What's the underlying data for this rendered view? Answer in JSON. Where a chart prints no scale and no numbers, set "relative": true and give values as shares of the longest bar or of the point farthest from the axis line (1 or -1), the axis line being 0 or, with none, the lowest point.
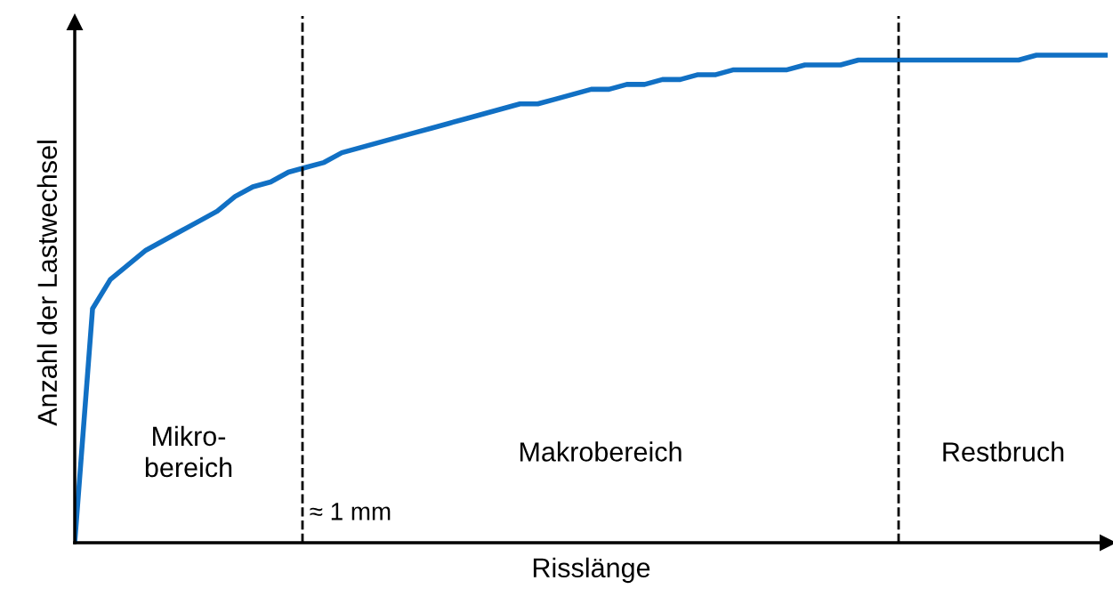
{
  "chart_data": {
    "type": "line",
    "relative": true,
    "xlabel": "Risslänge",
    "ylabel": "Anzahl der Lastwechsel",
    "categories": [
      null,
      null,
      null,
      null,
      null,
      null,
      null,
      null,
      null,
      null,
      null,
      null,
      null,
      null,
      null,
      null,
      null,
      null,
      null,
      null,
      null,
      null,
      null,
      null,
      null,
      null,
      null,
      null,
      null,
      null,
      null,
      null,
      null,
      null,
      null,
      null,
      null,
      null,
      null,
      null,
      null,
      null,
      null,
      null,
      null,
      null,
      null,
      null,
      null,
      null,
      null,
      null,
      null,
      null,
      null,
      null,
      null,
      null,
      null
    ],
    "series": [
      {
        "color": "#1170c4",
        "values": [
          0,
          0.48,
          0.54,
          0.57,
          0.6,
          0.62,
          0.64,
          0.66,
          0.68,
          0.71,
          0.73,
          0.74,
          0.76,
          0.77,
          0.78,
          0.8,
          0.81,
          0.82,
          0.83,
          0.84,
          0.85,
          0.86,
          0.87,
          0.88,
          0.89,
          0.9,
          0.9,
          0.91,
          0.92,
          0.93,
          0.93,
          0.94,
          0.94,
          0.95,
          0.95,
          0.96,
          0.96,
          0.97,
          0.97,
          0.97,
          0.97,
          0.98,
          0.98,
          0.98,
          0.99,
          0.99,
          0.99,
          0.99,
          0.99,
          0.99,
          0.99,
          0.99,
          0.99,
          0.99,
          1,
          1,
          1,
          1,
          1
        ]
      }
    ],
    "annotations": [
      "Mikro-\nbereich",
      "Makrobereich",
      "Restbruch",
      "≈ 1 mm"
    ]
  }
}
